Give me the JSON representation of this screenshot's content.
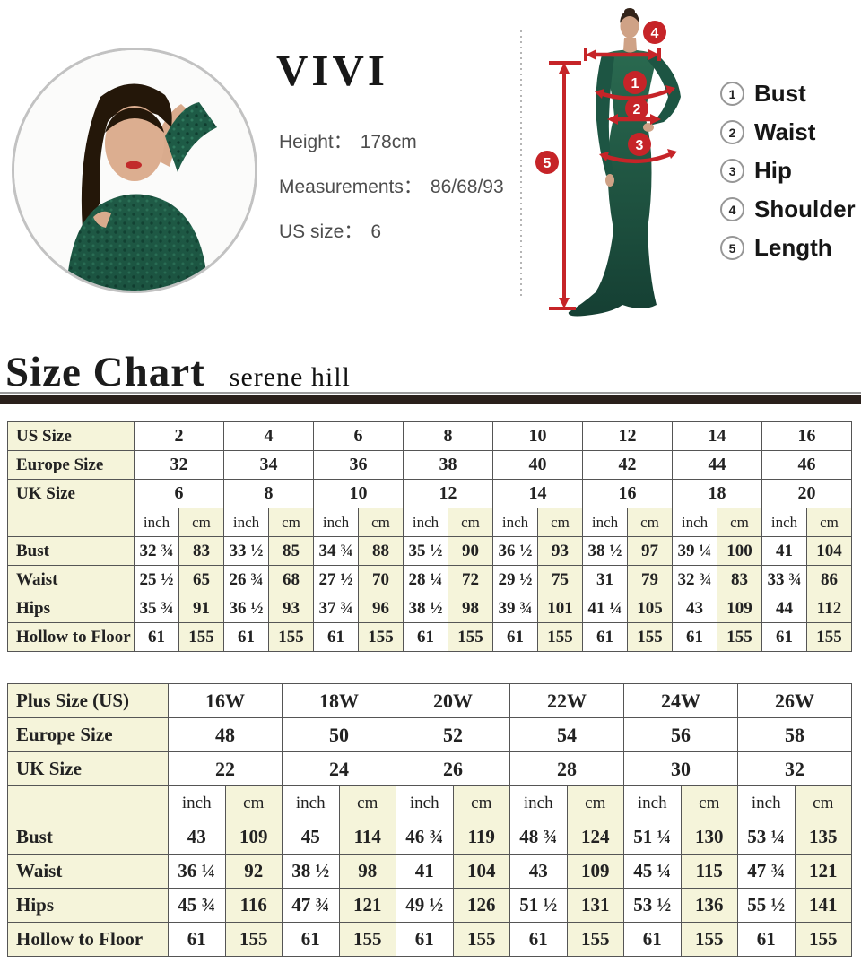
{
  "brand": {
    "name": "VIVI"
  },
  "model_info": {
    "lines": [
      {
        "label": "Height：",
        "value": "178cm"
      },
      {
        "label": "Measurements：",
        "value": "86/68/93"
      },
      {
        "label": "US size：",
        "value": "6"
      }
    ]
  },
  "diagram": {
    "accent_color": "#c62428",
    "badges": {
      "bust": "1",
      "waist": "2",
      "hip": "3",
      "shoulder": "4",
      "length": "5"
    },
    "legend": [
      {
        "num": "1",
        "label": "Bust"
      },
      {
        "num": "2",
        "label": "Waist"
      },
      {
        "num": "3",
        "label": "Hip"
      },
      {
        "num": "4",
        "label": "Shoulder"
      },
      {
        "num": "5",
        "label": "Length"
      }
    ]
  },
  "heading": {
    "title": "Size Chart",
    "subtitle": "serene hill"
  },
  "tables": [
    {
      "name": "regular-sizes",
      "unit_labels": [
        "inch",
        "cm"
      ],
      "size_rows": [
        {
          "label": "US Size",
          "values": [
            "2",
            "4",
            "6",
            "8",
            "10",
            "12",
            "14",
            "16"
          ]
        },
        {
          "label": "Europe Size",
          "values": [
            "32",
            "34",
            "36",
            "38",
            "40",
            "42",
            "44",
            "46"
          ]
        },
        {
          "label": "UK Size",
          "values": [
            "6",
            "8",
            "10",
            "12",
            "14",
            "16",
            "18",
            "20"
          ]
        }
      ],
      "measure_rows": [
        {
          "label": "Bust",
          "pairs": [
            [
              "32 ¾",
              "83"
            ],
            [
              "33 ½",
              "85"
            ],
            [
              "34 ¾",
              "88"
            ],
            [
              "35 ½",
              "90"
            ],
            [
              "36 ½",
              "93"
            ],
            [
              "38 ½",
              "97"
            ],
            [
              "39 ¼",
              "100"
            ],
            [
              "41",
              "104"
            ]
          ]
        },
        {
          "label": "Waist",
          "pairs": [
            [
              "25 ½",
              "65"
            ],
            [
              "26 ¾",
              "68"
            ],
            [
              "27 ½",
              "70"
            ],
            [
              "28 ¼",
              "72"
            ],
            [
              "29 ½",
              "75"
            ],
            [
              "31",
              "79"
            ],
            [
              "32 ¾",
              "83"
            ],
            [
              "33 ¾",
              "86"
            ]
          ]
        },
        {
          "label": "Hips",
          "pairs": [
            [
              "35 ¾",
              "91"
            ],
            [
              "36 ½",
              "93"
            ],
            [
              "37 ¾",
              "96"
            ],
            [
              "38 ½",
              "98"
            ],
            [
              "39 ¾",
              "101"
            ],
            [
              "41 ¼",
              "105"
            ],
            [
              "43",
              "109"
            ],
            [
              "44",
              "112"
            ]
          ]
        },
        {
          "label": "Hollow to Floor",
          "pairs": [
            [
              "61",
              "155"
            ],
            [
              "61",
              "155"
            ],
            [
              "61",
              "155"
            ],
            [
              "61",
              "155"
            ],
            [
              "61",
              "155"
            ],
            [
              "61",
              "155"
            ],
            [
              "61",
              "155"
            ],
            [
              "61",
              "155"
            ]
          ]
        }
      ]
    },
    {
      "name": "plus-sizes",
      "unit_labels": [
        "inch",
        "cm"
      ],
      "size_rows": [
        {
          "label": "Plus Size (US)",
          "values": [
            "16W",
            "18W",
            "20W",
            "22W",
            "24W",
            "26W"
          ]
        },
        {
          "label": "Europe Size",
          "values": [
            "48",
            "50",
            "52",
            "54",
            "56",
            "58"
          ]
        },
        {
          "label": "UK Size",
          "values": [
            "22",
            "24",
            "26",
            "28",
            "30",
            "32"
          ]
        }
      ],
      "measure_rows": [
        {
          "label": "Bust",
          "pairs": [
            [
              "43",
              "109"
            ],
            [
              "45",
              "114"
            ],
            [
              "46 ¾",
              "119"
            ],
            [
              "48 ¾",
              "124"
            ],
            [
              "51 ¼",
              "130"
            ],
            [
              "53 ¼",
              "135"
            ]
          ]
        },
        {
          "label": "Waist",
          "pairs": [
            [
              "36 ¼",
              "92"
            ],
            [
              "38 ½",
              "98"
            ],
            [
              "41",
              "104"
            ],
            [
              "43",
              "109"
            ],
            [
              "45 ¼",
              "115"
            ],
            [
              "47 ¾",
              "121"
            ]
          ]
        },
        {
          "label": "Hips",
          "pairs": [
            [
              "45 ¾",
              "116"
            ],
            [
              "47 ¾",
              "121"
            ],
            [
              "49 ½",
              "126"
            ],
            [
              "51 ½",
              "131"
            ],
            [
              "53 ½",
              "136"
            ],
            [
              "55 ½",
              "141"
            ]
          ]
        },
        {
          "label": "Hollow to Floor",
          "pairs": [
            [
              "61",
              "155"
            ],
            [
              "61",
              "155"
            ],
            [
              "61",
              "155"
            ],
            [
              "61",
              "155"
            ],
            [
              "61",
              "155"
            ],
            [
              "61",
              "155"
            ]
          ]
        }
      ]
    }
  ]
}
